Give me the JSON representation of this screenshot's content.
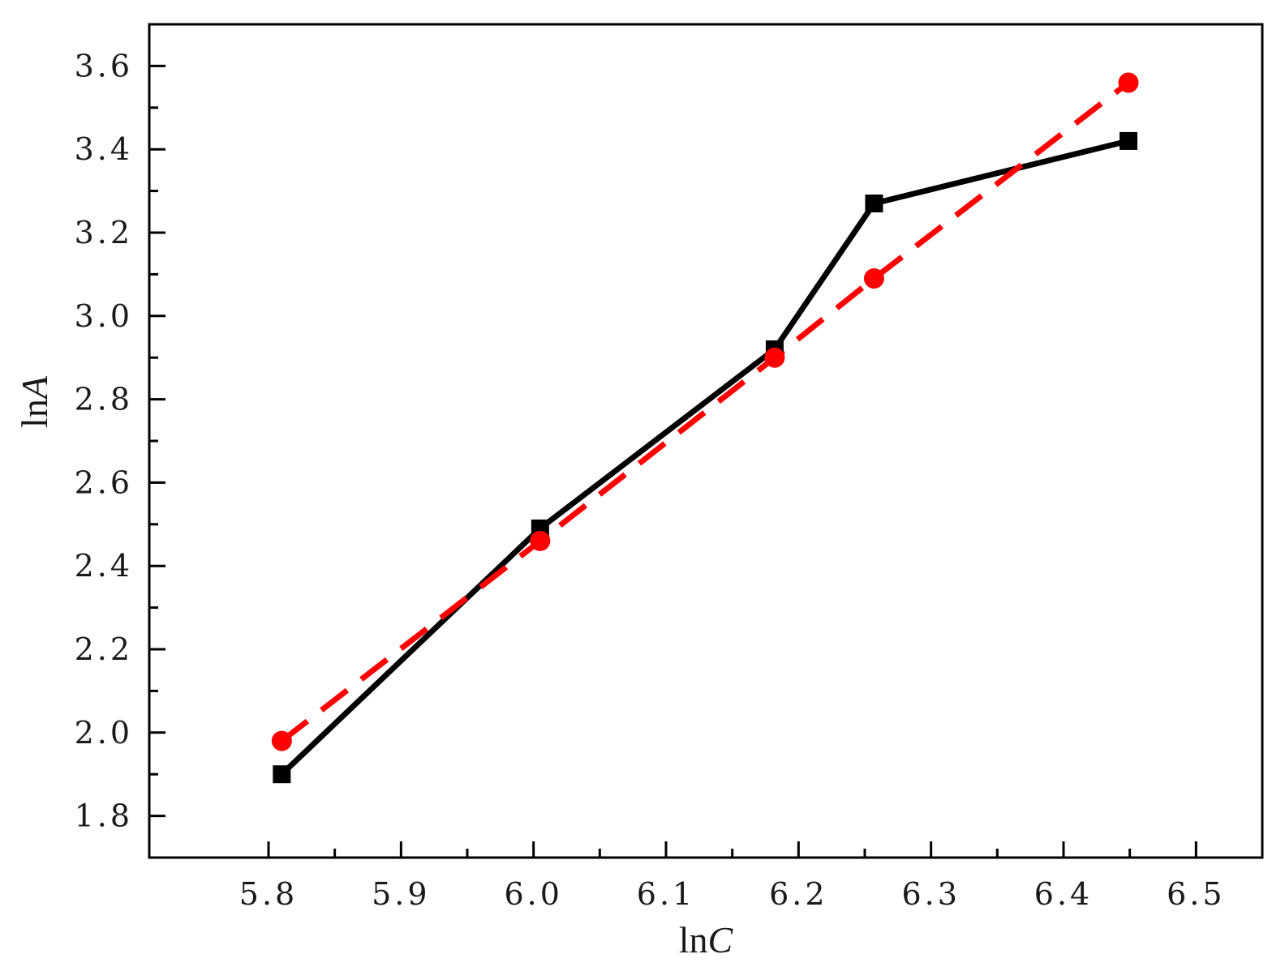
{
  "chart_data": {
    "type": "line",
    "title": "",
    "xlabel": {
      "prefix": "ln",
      "var": "C"
    },
    "ylabel": {
      "prefix": "ln",
      "var": "A"
    },
    "xlim": [
      5.71,
      6.55
    ],
    "ylim": [
      1.7,
      3.7
    ],
    "xticks": [
      5.8,
      5.9,
      6.0,
      6.1,
      6.2,
      6.3,
      6.4,
      6.5
    ],
    "xtick_labels": [
      "5.8",
      "5.9",
      "6.0",
      "6.1",
      "6.2",
      "6.3",
      "6.4",
      "6.5"
    ],
    "yticks": [
      1.8,
      2.0,
      2.2,
      2.4,
      2.6,
      2.8,
      3.0,
      3.2,
      3.4,
      3.6
    ],
    "ytick_labels": [
      "1.8",
      "2.0",
      "2.2",
      "2.4",
      "2.6",
      "2.8",
      "3.0",
      "3.2",
      "3.4",
      "3.6"
    ],
    "grid": false,
    "legend": "none",
    "series": [
      {
        "color": "#000000",
        "line": "solid",
        "marker": "square",
        "x": [
          5.81,
          6.005,
          6.182,
          6.257,
          6.449
        ],
        "y": [
          1.9,
          2.49,
          2.92,
          3.27,
          3.42
        ]
      },
      {
        "color": "#ff0000",
        "line": "dashed",
        "marker": "circle",
        "x": [
          5.81,
          6.005,
          6.182,
          6.257,
          6.449
        ],
        "y": [
          1.98,
          2.46,
          2.9,
          3.09,
          3.56
        ]
      }
    ]
  }
}
